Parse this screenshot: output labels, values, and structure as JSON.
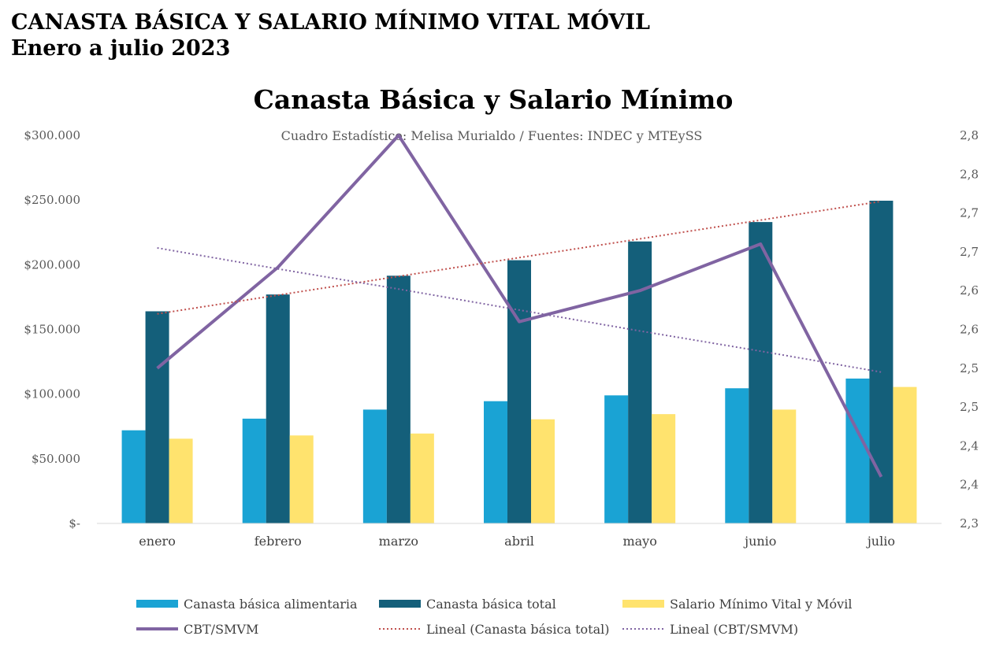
{
  "page": {
    "heading_line1": "CANASTA BÁSICA Y SALARIO MÍNIMO VITAL MÓVIL",
    "heading_line2": "Enero a julio 2023"
  },
  "chart_data": {
    "type": "bar",
    "title": "Canasta Básica y Salario Mínimo",
    "subtitle": "Cuadro Estadístico: Melisa Murialdo / Fuentes: INDEC y MTEySS",
    "categories": [
      "enero",
      "febrero",
      "marzo",
      "abril",
      "mayo",
      "junio",
      "julio"
    ],
    "series": [
      {
        "name": "Canasta básica alimentaria",
        "kind": "bar",
        "axis": "left",
        "color": "#1aa3d4",
        "values": [
          72000,
          81000,
          88000,
          94500,
          99000,
          104500,
          112000
        ]
      },
      {
        "name": "Canasta básica total",
        "kind": "bar",
        "axis": "left",
        "color": "#145f7a",
        "values": [
          164000,
          177000,
          191500,
          203500,
          218000,
          233000,
          249500
        ]
      },
      {
        "name": "Salario Mínimo Vital y Móvil",
        "kind": "bar",
        "axis": "left",
        "color": "#ffe36e",
        "values": [
          65500,
          68000,
          69500,
          80500,
          84500,
          88000,
          105500
        ]
      },
      {
        "name": "CBT/SMVM",
        "kind": "line",
        "axis": "right",
        "color": "#8064a2",
        "values": [
          2.5,
          2.63,
          2.8,
          2.56,
          2.6,
          2.66,
          2.36
        ]
      },
      {
        "name": "Lineal (Canasta básica total)",
        "kind": "trendline",
        "axis": "left",
        "color": "#c0504d",
        "values": [
          162000,
          176500,
          191000,
          205500,
          220000,
          234500,
          249000
        ]
      },
      {
        "name": "Lineal (CBT/SMVM)",
        "kind": "trendline",
        "axis": "right",
        "color": "#8064a2",
        "values": [
          2.655,
          2.628,
          2.602,
          2.575,
          2.548,
          2.522,
          2.495
        ]
      }
    ],
    "y_left": {
      "ylim": [
        0,
        300000
      ],
      "ticks": [
        0,
        50000,
        100000,
        150000,
        200000,
        250000,
        300000
      ],
      "tick_labels": [
        "$-",
        "$50.000",
        "$100.000",
        "$150.000",
        "$200.000",
        "$250.000",
        "$300.000"
      ]
    },
    "y_right": {
      "ylim": [
        2.3,
        2.8
      ],
      "ticks": [
        2.3,
        2.35,
        2.4,
        2.45,
        2.5,
        2.55,
        2.6,
        2.65,
        2.7,
        2.75,
        2.8
      ],
      "tick_labels": [
        "2,3",
        "2,4",
        "2,4",
        "2,5",
        "2,5",
        "2,6",
        "2,6",
        "2,7",
        "2,7",
        "2,8",
        "2,8"
      ]
    },
    "grid": false,
    "legend_position": "bottom",
    "legend": [
      "Canasta básica alimentaria",
      "Canasta básica total",
      "Salario Mínimo Vital y Móvil",
      "CBT/SMVM",
      "Lineal (Canasta básica total)",
      "Lineal (CBT/SMVM)"
    ]
  }
}
